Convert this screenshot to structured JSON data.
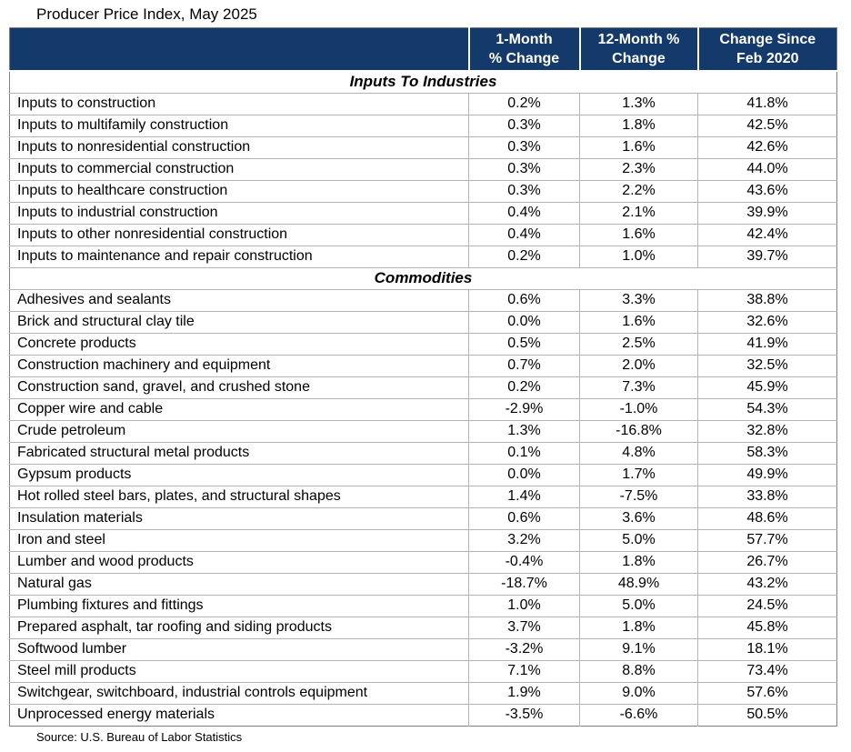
{
  "title": "Producer Price Index, May 2025",
  "source_note": "Source: U.S. Bureau of Labor Statistics",
  "colors": {
    "header_bg": "#143A6B",
    "header_text": "#FFFFFF",
    "grid_border": "#B3B3B3",
    "outer_border": "#808080",
    "body_text": "#000000"
  },
  "chart_data": {
    "type": "table",
    "title": "Producer Price Index, May 2025",
    "columns": [
      "1-Month\n% Change",
      "12-Month %\nChange",
      "Change Since\nFeb 2020"
    ],
    "sections": [
      {
        "name": "Inputs To Industries",
        "rows": [
          {
            "label": "Inputs to construction",
            "values": [
              "0.2%",
              "1.3%",
              "41.8%"
            ]
          },
          {
            "label": "Inputs to multifamily construction",
            "values": [
              "0.3%",
              "1.8%",
              "42.5%"
            ]
          },
          {
            "label": "Inputs to nonresidential construction",
            "values": [
              "0.3%",
              "1.6%",
              "42.6%"
            ]
          },
          {
            "label": "Inputs to commercial construction",
            "values": [
              "0.3%",
              "2.3%",
              "44.0%"
            ]
          },
          {
            "label": "Inputs to healthcare construction",
            "values": [
              "0.3%",
              "2.2%",
              "43.6%"
            ]
          },
          {
            "label": "Inputs to industrial construction",
            "values": [
              "0.4%",
              "2.1%",
              "39.9%"
            ]
          },
          {
            "label": "Inputs to other nonresidential construction",
            "values": [
              "0.4%",
              "1.6%",
              "42.4%"
            ]
          },
          {
            "label": "Inputs to maintenance and repair construction",
            "values": [
              "0.2%",
              "1.0%",
              "39.7%"
            ]
          }
        ]
      },
      {
        "name": "Commodities",
        "rows": [
          {
            "label": "Adhesives and sealants",
            "values": [
              "0.6%",
              "3.3%",
              "38.8%"
            ]
          },
          {
            "label": "Brick and structural clay tile",
            "values": [
              "0.0%",
              "1.6%",
              "32.6%"
            ]
          },
          {
            "label": "Concrete products",
            "values": [
              "0.5%",
              "2.5%",
              "41.9%"
            ]
          },
          {
            "label": "Construction machinery and equipment",
            "values": [
              "0.7%",
              "2.0%",
              "32.5%"
            ]
          },
          {
            "label": "Construction sand, gravel, and crushed stone",
            "values": [
              "0.2%",
              "7.3%",
              "45.9%"
            ]
          },
          {
            "label": "Copper wire and cable",
            "values": [
              "-2.9%",
              "-1.0%",
              "54.3%"
            ]
          },
          {
            "label": "Crude petroleum",
            "values": [
              "1.3%",
              "-16.8%",
              "32.8%"
            ]
          },
          {
            "label": "Fabricated structural metal products",
            "values": [
              "0.1%",
              "4.8%",
              "58.3%"
            ]
          },
          {
            "label": "Gypsum products",
            "values": [
              "0.0%",
              "1.7%",
              "49.9%"
            ]
          },
          {
            "label": "Hot rolled steel bars, plates, and structural shapes",
            "values": [
              "1.4%",
              "-7.5%",
              "33.8%"
            ]
          },
          {
            "label": "Insulation materials",
            "values": [
              "0.6%",
              "3.6%",
              "48.6%"
            ]
          },
          {
            "label": "Iron and steel",
            "values": [
              "3.2%",
              "5.0%",
              "57.7%"
            ]
          },
          {
            "label": "Lumber and wood products",
            "values": [
              "-0.4%",
              "1.8%",
              "26.7%"
            ]
          },
          {
            "label": "Natural gas",
            "values": [
              "-18.7%",
              "48.9%",
              "43.2%"
            ]
          },
          {
            "label": "Plumbing fixtures and fittings",
            "values": [
              "1.0%",
              "5.0%",
              "24.5%"
            ]
          },
          {
            "label": "Prepared asphalt, tar roofing and siding products",
            "values": [
              "3.7%",
              "1.8%",
              "45.8%"
            ]
          },
          {
            "label": "Softwood lumber",
            "values": [
              "-3.2%",
              "9.1%",
              "18.1%"
            ]
          },
          {
            "label": "Steel mill products",
            "values": [
              "7.1%",
              "8.8%",
              "73.4%"
            ]
          },
          {
            "label": "Switchgear, switchboard, industrial controls equipment",
            "values": [
              "1.9%",
              "9.0%",
              "57.6%"
            ]
          },
          {
            "label": "Unprocessed energy materials",
            "values": [
              "-3.5%",
              "-6.6%",
              "50.5%"
            ]
          }
        ]
      }
    ]
  }
}
